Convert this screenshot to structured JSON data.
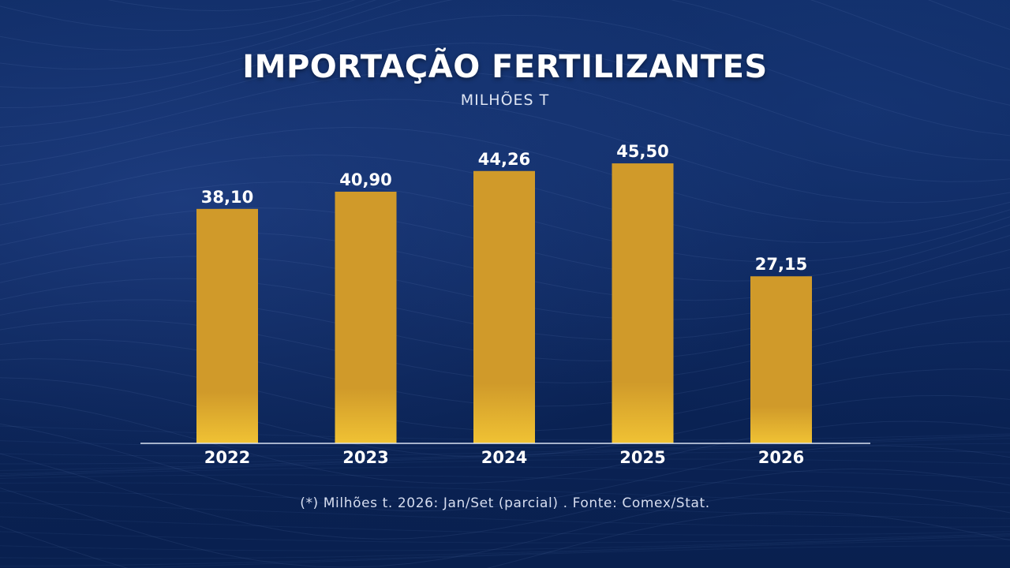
{
  "colors": {
    "background": "#0b2150",
    "bar_top": "#d09a2a",
    "bar_bottom": "#f0c234",
    "text": "#ffffff",
    "baseline": "#d9e2f2"
  },
  "chart_data": {
    "type": "bar",
    "title": "IMPORTAÇÃO FERTILIZANTES",
    "subtitle": "MILHÕES T",
    "categories": [
      "2022",
      "2023",
      "2024",
      "2025",
      "2026"
    ],
    "values": [
      38.1,
      40.9,
      44.26,
      45.5,
      27.15
    ],
    "value_labels": [
      "38,10",
      "40,90",
      "44,26",
      "45,50",
      "27,15"
    ],
    "ylim": [
      0,
      50
    ],
    "grid": false,
    "footnote": "(*) Milhões t. 2026: Jan/Set (parcial) . Fonte: Comex/Stat."
  }
}
